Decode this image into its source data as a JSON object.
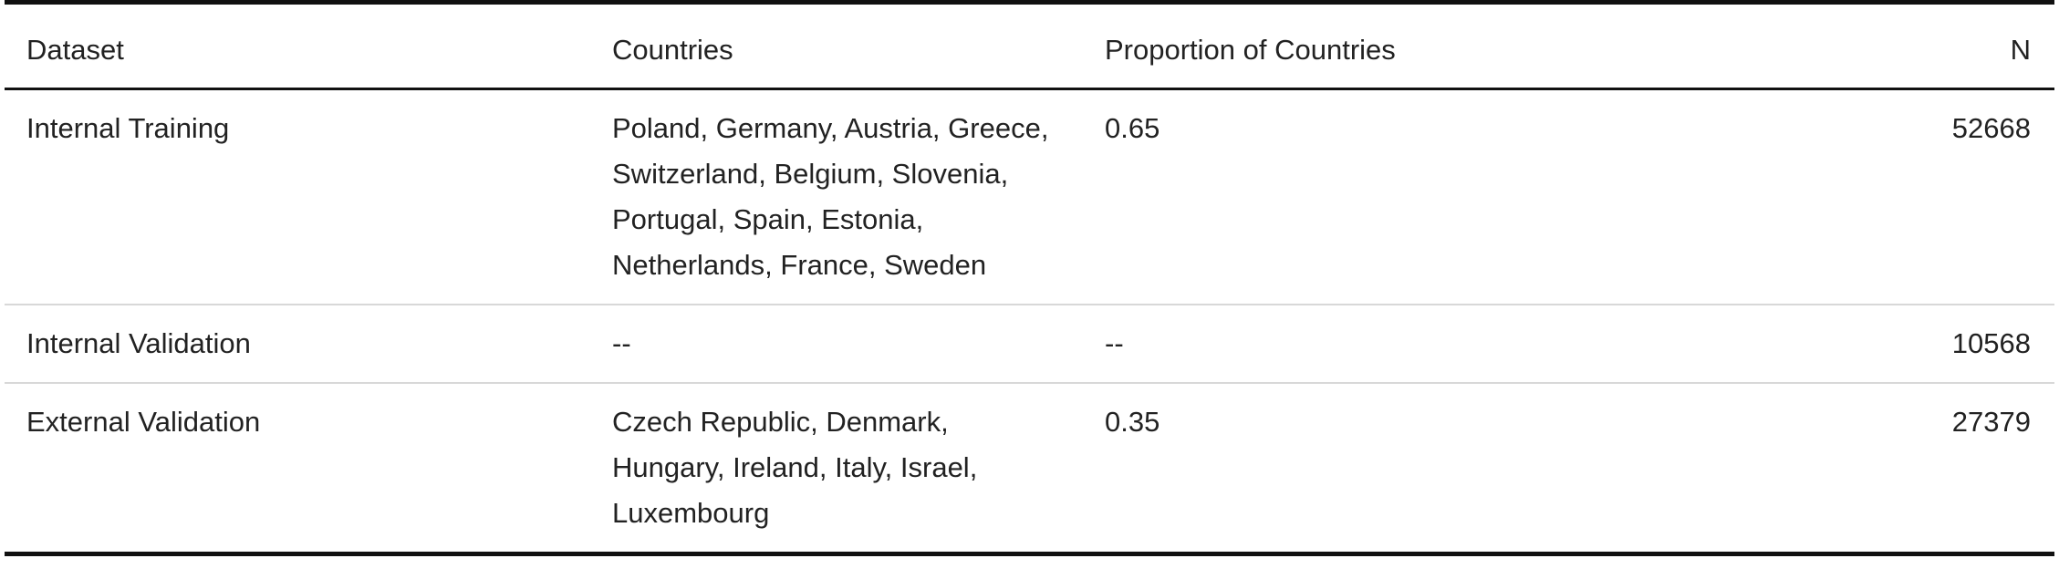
{
  "table": {
    "headers": {
      "dataset": "Dataset",
      "countries": "Countries",
      "proportion": "Proportion of Countries",
      "n": "N"
    },
    "rows": [
      {
        "dataset": "Internal Training",
        "countries": "Poland, Germany, Austria, Greece, Switzerland, Belgium, Slovenia, Portugal, Spain, Estonia, Netherlands, France, Sweden",
        "proportion": "0.65",
        "n": "52668"
      },
      {
        "dataset": "Internal Validation",
        "countries": "--",
        "proportion": "--",
        "n": "10568"
      },
      {
        "dataset": "External Validation",
        "countries": "Czech Republic, Denmark, Hungary, Ireland, Italy, Israel, Luxembourg",
        "proportion": "0.35",
        "n": "27379"
      }
    ]
  }
}
